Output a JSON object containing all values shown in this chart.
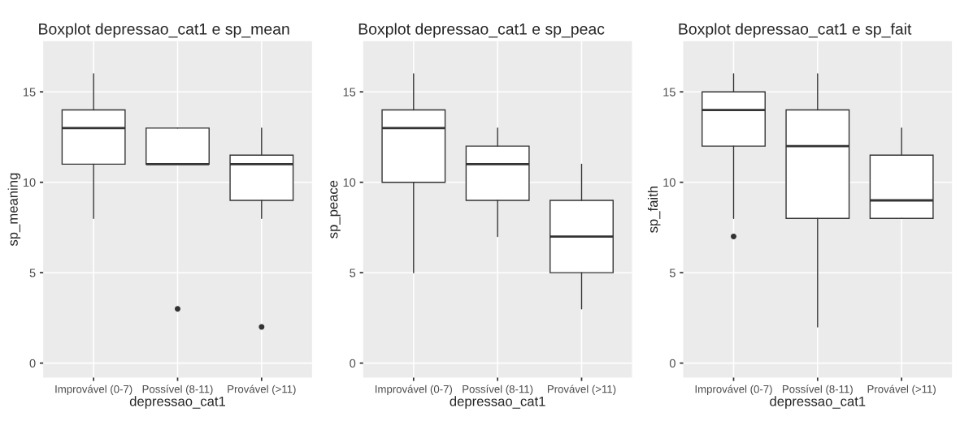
{
  "chart_data": [
    {
      "type": "box",
      "title": "Boxplot depressao_cat1 e sp_mean",
      "xlabel": "depressao_cat1",
      "ylabel": "sp_meaning",
      "categories": [
        "Improvável (0-7)",
        "Possível (8-11)",
        "Provável (>11)"
      ],
      "ylim": [
        -0.8,
        17.8
      ],
      "yticks": [
        0,
        5,
        10,
        15
      ],
      "grid": true,
      "boxes": [
        {
          "low": 8,
          "q1": 11,
          "median": 13,
          "q3": 14,
          "high": 16
        },
        {
          "low": 11,
          "q1": 11,
          "median": 11,
          "q3": 13,
          "high": 13,
          "outliers": [
            3
          ]
        },
        {
          "low": 8,
          "q1": 9,
          "median": 11,
          "q3": 11.5,
          "high": 13,
          "outliers": [
            2
          ]
        }
      ]
    },
    {
      "type": "box",
      "title": "Boxplot depressao_cat1 e sp_peac",
      "xlabel": "depressao_cat1",
      "ylabel": "sp_peace",
      "categories": [
        "Improvável (0-7)",
        "Possível (8-11)",
        "Provável (>11)"
      ],
      "ylim": [
        -0.8,
        17.8
      ],
      "yticks": [
        0,
        5,
        10,
        15
      ],
      "grid": true,
      "boxes": [
        {
          "low": 5,
          "q1": 10,
          "median": 13,
          "q3": 14,
          "high": 16
        },
        {
          "low": 7,
          "q1": 9,
          "median": 11,
          "q3": 12,
          "high": 13
        },
        {
          "low": 3,
          "q1": 5,
          "median": 7,
          "q3": 9,
          "high": 11
        }
      ]
    },
    {
      "type": "box",
      "title": "Boxplot depressao_cat1 e sp_fait",
      "xlabel": "depressao_cat1",
      "ylabel": "sp_faith",
      "categories": [
        "Improvável (0-7)",
        "Possível (8-11)",
        "Provável (>11)"
      ],
      "ylim": [
        -0.8,
        17.8
      ],
      "yticks": [
        0,
        5,
        10,
        15
      ],
      "grid": true,
      "boxes": [
        {
          "low": 8,
          "q1": 12,
          "median": 14,
          "q3": 15,
          "high": 16,
          "outliers": [
            7
          ]
        },
        {
          "low": 2,
          "q1": 8,
          "median": 12,
          "q3": 14,
          "high": 16
        },
        {
          "low": 8,
          "q1": 8,
          "median": 9,
          "q3": 11.5,
          "high": 13
        }
      ]
    }
  ]
}
